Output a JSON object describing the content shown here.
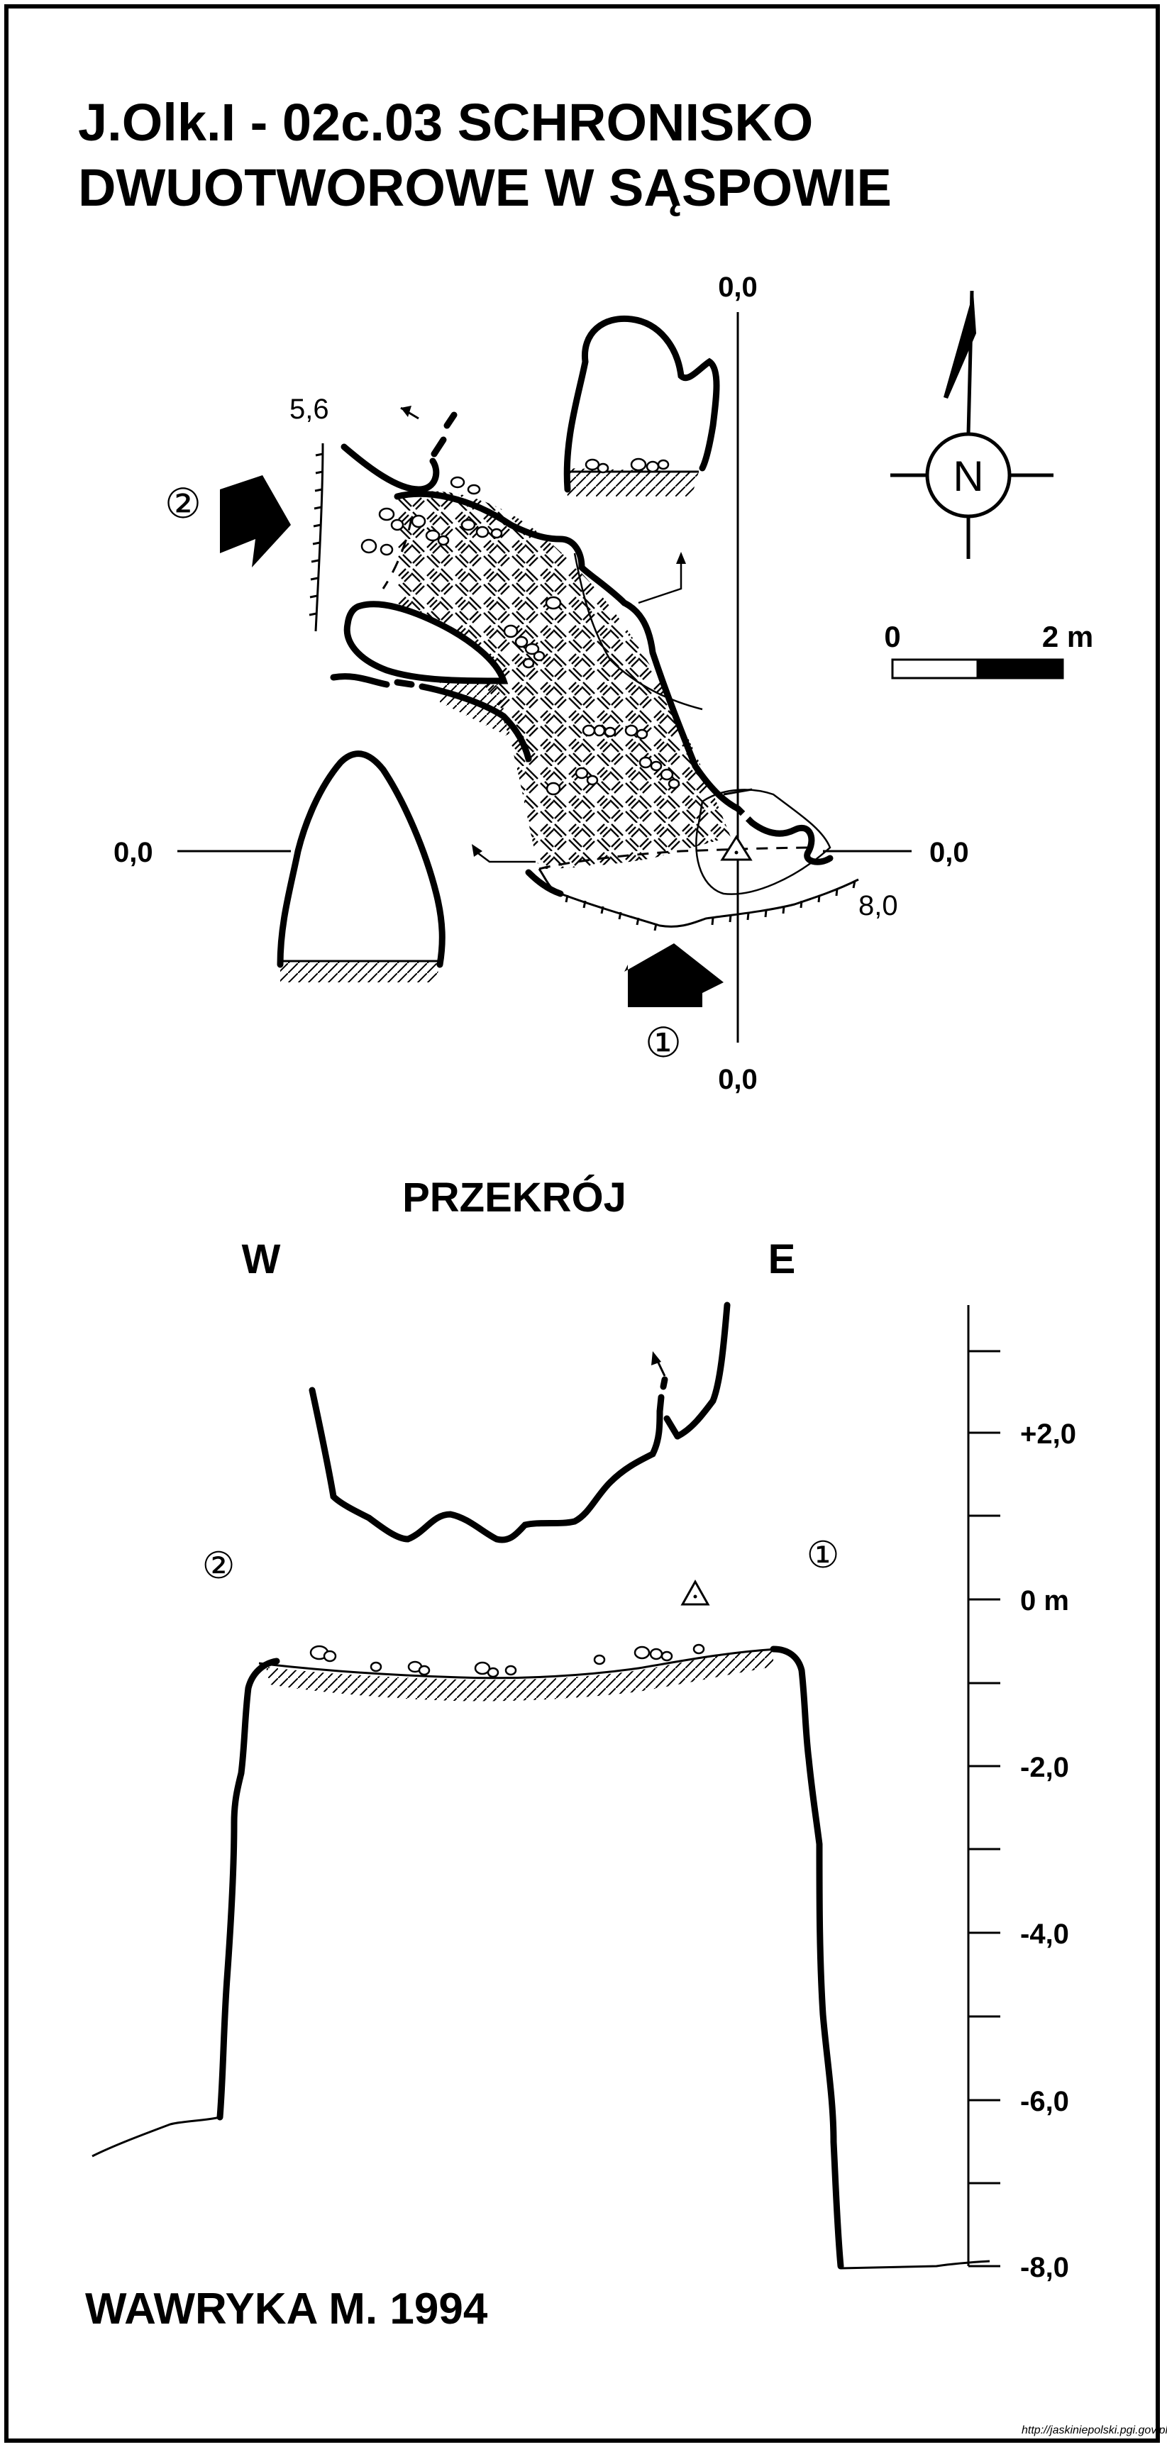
{
  "title": {
    "line1": "J.Olk.I - 02c.03  SCHRONISKO",
    "line2": "DWUOTWOROWE W SĄSPOWIE"
  },
  "plan": {
    "axis_top": "0,0",
    "axis_bottom": "0,0",
    "axis_left": "0,0",
    "axis_right": "0,0",
    "depth_left": "5,6",
    "depth_right": "8,0",
    "entrance_1": "①",
    "entrance_2": "②",
    "compass_letter": "N",
    "scale_start": "0",
    "scale_end": "2 m"
  },
  "section": {
    "heading": "PRZEKRÓJ",
    "west": "W",
    "east": "E",
    "entrance_1": "①",
    "entrance_2": "②",
    "ticks": [
      "+2,0",
      "0 m",
      "-2,0",
      "-4,0",
      "-6,0",
      "-8,0"
    ]
  },
  "author": "WAWRYKA M. 1994",
  "url": "http://jaskiniepolski.pgi.gov.pl"
}
